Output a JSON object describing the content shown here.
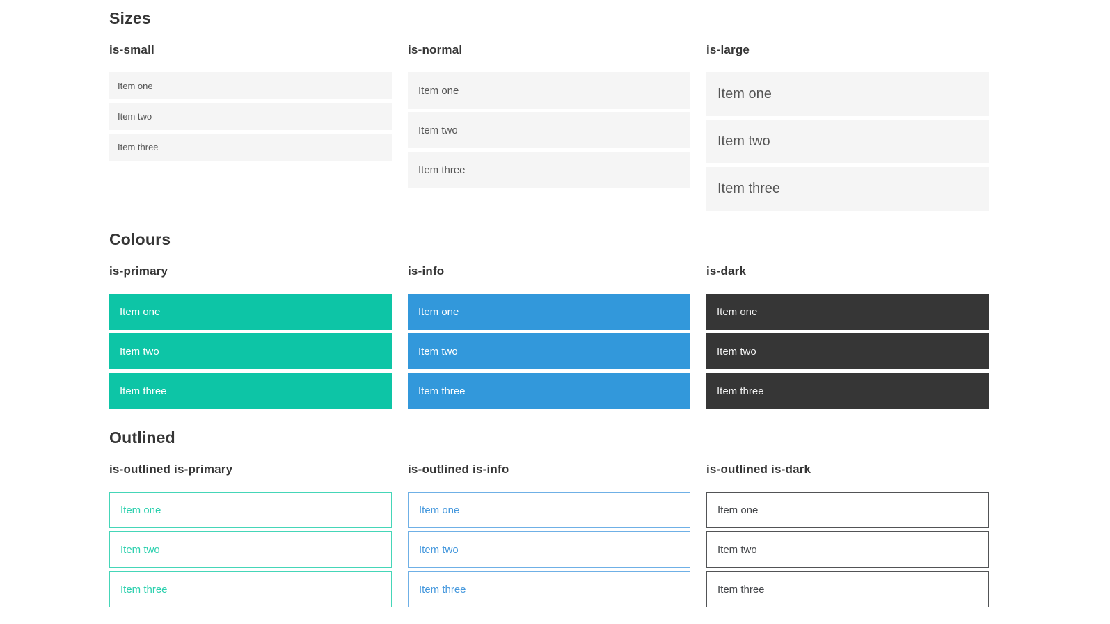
{
  "colors": {
    "background": "#ffffff",
    "heading_text": "#363636",
    "light_row_background": "#f5f5f5",
    "light_row_text": "#555555",
    "primary": "#0dc5a6",
    "info": "#3298db",
    "dark": "#363636",
    "outlined_primary_border": "#45d6b8",
    "outlined_primary_text": "#2bd0ae",
    "outlined_info_border": "#6fb0e6",
    "outlined_info_text": "#4598dd",
    "outlined_dark_border": "#525456",
    "outlined_dark_text": "#44464a"
  },
  "sections": [
    {
      "title": "Sizes",
      "columns": [
        {
          "label": "is-small",
          "items": [
            "Item one",
            "Item two",
            "Item three"
          ]
        },
        {
          "label": "is-normal",
          "items": [
            "Item one",
            "Item two",
            "Item three"
          ]
        },
        {
          "label": "is-large",
          "items": [
            "Item one",
            "Item two",
            "Item three"
          ]
        }
      ]
    },
    {
      "title": "Colours",
      "columns": [
        {
          "label": "is-primary",
          "items": [
            "Item one",
            "Item two",
            "Item three"
          ]
        },
        {
          "label": "is-info",
          "items": [
            "Item one",
            "Item two",
            "Item three"
          ]
        },
        {
          "label": "is-dark",
          "items": [
            "Item one",
            "Item two",
            "Item three"
          ]
        }
      ]
    },
    {
      "title": "Outlined",
      "columns": [
        {
          "label": "is-outlined is-primary",
          "items": [
            "Item one",
            "Item two",
            "Item three"
          ]
        },
        {
          "label": "is-outlined is-info",
          "items": [
            "Item one",
            "Item two",
            "Item three"
          ]
        },
        {
          "label": "is-outlined is-dark",
          "items": [
            "Item one",
            "Item two",
            "Item three"
          ]
        }
      ]
    }
  ]
}
